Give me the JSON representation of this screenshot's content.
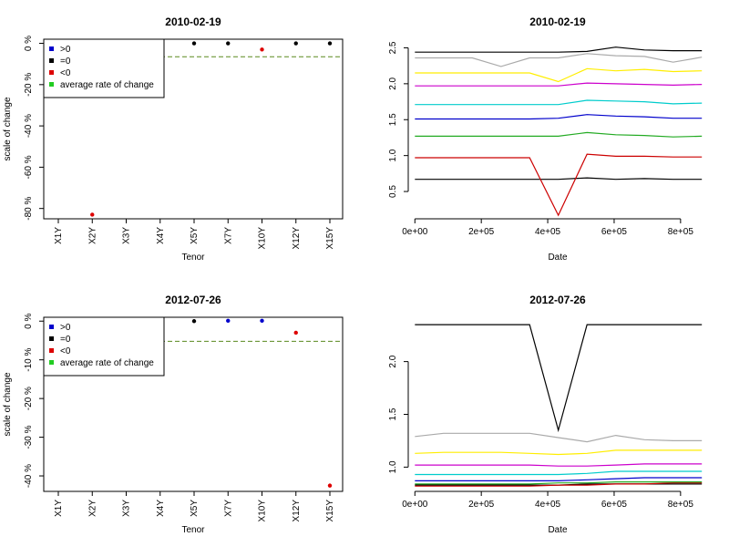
{
  "chart_data": [
    {
      "type": "scatter",
      "title": "2010-02-19",
      "xlabel": "Tenor",
      "ylabel": "scale of change",
      "categories": [
        "X1Y",
        "X2Y",
        "X3Y",
        "X4Y",
        "X5Y",
        "X7Y",
        "X10Y",
        "X12Y",
        "X15Y"
      ],
      "ylim": [
        -85,
        2
      ],
      "yticks": [
        0,
        -20,
        -40,
        -60,
        -80
      ],
      "ytick_labels": [
        "0 %",
        "-20 %",
        "-40 %",
        "-60 %",
        "-80 %"
      ],
      "legend": {
        "position": "top-left",
        "items": [
          {
            "label": ">0",
            "color": "#0000cc"
          },
          {
            "label": "=0",
            "color": "#000000"
          },
          {
            "label": "<0",
            "color": "#dd0000"
          },
          {
            "label": "average rate of change",
            "color": "#22cc22"
          }
        ]
      },
      "points": [
        {
          "category": "X2Y",
          "value": -83,
          "kind": "<0"
        },
        {
          "category": "X5Y",
          "value": 0,
          "kind": "=0"
        },
        {
          "category": "X7Y",
          "value": 0,
          "kind": "=0"
        },
        {
          "category": "X10Y",
          "value": -3,
          "kind": "<0"
        },
        {
          "category": "X12Y",
          "value": 0,
          "kind": "=0"
        },
        {
          "category": "X15Y",
          "value": 0,
          "kind": "=0"
        }
      ],
      "average_line": {
        "value": -6.5,
        "color": "#5a8a1e"
      }
    },
    {
      "type": "line",
      "title": "2010-02-19",
      "xlabel": "Date",
      "ylabel": "",
      "xlim": [
        -20000,
        880000
      ],
      "ylim": [
        0.12,
        2.62
      ],
      "xticks": [
        0,
        200000,
        400000,
        600000,
        800000
      ],
      "xtick_labels": [
        "0e+00",
        "2e+05",
        "4e+05",
        "6e+05",
        "8e+05"
      ],
      "yticks": [
        0.5,
        1.0,
        1.5,
        2.0,
        2.5
      ],
      "ytick_labels": [
        "0.5",
        "1.0",
        "1.5",
        "2.0",
        "2.5"
      ],
      "x": [
        0,
        86400,
        172800,
        259200,
        345600,
        432000,
        518400,
        604800,
        691200,
        777600,
        864000
      ],
      "series": [
        {
          "color": "#000000",
          "values": [
            0.67,
            0.67,
            0.67,
            0.67,
            0.67,
            0.67,
            0.69,
            0.67,
            0.68,
            0.67,
            0.67
          ]
        },
        {
          "color": "#cc0000",
          "values": [
            0.97,
            0.97,
            0.97,
            0.97,
            0.97,
            0.17,
            1.02,
            0.99,
            0.99,
            0.98,
            0.98
          ]
        },
        {
          "color": "#22aa22",
          "values": [
            1.27,
            1.27,
            1.27,
            1.27,
            1.27,
            1.27,
            1.32,
            1.29,
            1.28,
            1.26,
            1.27
          ]
        },
        {
          "color": "#0000cc",
          "values": [
            1.51,
            1.51,
            1.51,
            1.51,
            1.51,
            1.52,
            1.57,
            1.55,
            1.54,
            1.52,
            1.52
          ]
        },
        {
          "color": "#00cccc",
          "values": [
            1.71,
            1.71,
            1.71,
            1.71,
            1.71,
            1.71,
            1.77,
            1.76,
            1.75,
            1.72,
            1.73
          ]
        },
        {
          "color": "#cc00cc",
          "values": [
            1.97,
            1.97,
            1.97,
            1.97,
            1.97,
            1.97,
            2.01,
            2.0,
            1.99,
            1.98,
            1.99
          ]
        },
        {
          "color": "#ffee00",
          "values": [
            2.15,
            2.15,
            2.15,
            2.15,
            2.15,
            2.03,
            2.21,
            2.18,
            2.2,
            2.17,
            2.18
          ]
        },
        {
          "color": "#aaaaaa",
          "values": [
            2.36,
            2.36,
            2.36,
            2.24,
            2.36,
            2.36,
            2.42,
            2.39,
            2.38,
            2.3,
            2.37
          ]
        },
        {
          "color": "#000000",
          "values": [
            2.44,
            2.44,
            2.44,
            2.44,
            2.44,
            2.44,
            2.45,
            2.51,
            2.47,
            2.46,
            2.46
          ]
        }
      ]
    },
    {
      "type": "scatter",
      "title": "2012-07-26",
      "xlabel": "Tenor",
      "ylabel": "scale of change",
      "categories": [
        "X1Y",
        "X2Y",
        "X3Y",
        "X4Y",
        "X5Y",
        "X7Y",
        "X10Y",
        "X12Y",
        "X15Y"
      ],
      "ylim": [
        -44,
        1
      ],
      "yticks": [
        0,
        -10,
        -20,
        -30,
        -40
      ],
      "ytick_labels": [
        "0 %",
        "-10 %",
        "-20 %",
        "-30 %",
        "-40 %"
      ],
      "legend": {
        "position": "top-left",
        "items": [
          {
            "label": ">0",
            "color": "#0000cc"
          },
          {
            "label": "=0",
            "color": "#000000"
          },
          {
            "label": "<0",
            "color": "#dd0000"
          },
          {
            "label": "average rate of change",
            "color": "#22cc22"
          }
        ]
      },
      "points": [
        {
          "category": "X5Y",
          "value": 0,
          "kind": "=0"
        },
        {
          "category": "X7Y",
          "value": 0.1,
          "kind": ">0"
        },
        {
          "category": "X10Y",
          "value": 0.1,
          "kind": ">0"
        },
        {
          "category": "X12Y",
          "value": -3,
          "kind": "<0"
        },
        {
          "category": "X15Y",
          "value": -42.5,
          "kind": "<0"
        }
      ],
      "average_line": {
        "value": -5.2,
        "color": "#5a8a1e"
      }
    },
    {
      "type": "line",
      "title": "2012-07-26",
      "xlabel": "Date",
      "ylabel": "",
      "xlim": [
        -20000,
        880000
      ],
      "ylim": [
        0.77,
        2.42
      ],
      "xticks": [
        0,
        200000,
        400000,
        600000,
        800000
      ],
      "xtick_labels": [
        "0e+00",
        "2e+05",
        "4e+05",
        "6e+05",
        "8e+05"
      ],
      "yticks": [
        1.0,
        1.5,
        2.0
      ],
      "ytick_labels": [
        "1.0",
        "1.5",
        "2.0"
      ],
      "x": [
        0,
        86400,
        172800,
        259200,
        345600,
        432000,
        518400,
        604800,
        691200,
        777600,
        864000
      ],
      "series": [
        {
          "color": "#000000",
          "values": [
            0.83,
            0.83,
            0.83,
            0.83,
            0.83,
            0.83,
            0.84,
            0.84,
            0.84,
            0.84,
            0.84
          ]
        },
        {
          "color": "#cc0000",
          "values": [
            0.82,
            0.82,
            0.82,
            0.82,
            0.82,
            0.83,
            0.83,
            0.84,
            0.84,
            0.85,
            0.85
          ]
        },
        {
          "color": "#22aa22",
          "values": [
            0.84,
            0.84,
            0.84,
            0.84,
            0.84,
            0.85,
            0.85,
            0.86,
            0.86,
            0.86,
            0.86
          ]
        },
        {
          "color": "#0000cc",
          "values": [
            0.87,
            0.87,
            0.87,
            0.87,
            0.87,
            0.87,
            0.88,
            0.89,
            0.9,
            0.9,
            0.9
          ]
        },
        {
          "color": "#00cccc",
          "values": [
            0.93,
            0.93,
            0.93,
            0.93,
            0.93,
            0.93,
            0.94,
            0.96,
            0.96,
            0.96,
            0.96
          ]
        },
        {
          "color": "#cc00cc",
          "values": [
            1.02,
            1.02,
            1.02,
            1.02,
            1.02,
            1.01,
            1.01,
            1.02,
            1.03,
            1.03,
            1.03
          ]
        },
        {
          "color": "#ffee00",
          "values": [
            1.13,
            1.14,
            1.14,
            1.14,
            1.13,
            1.12,
            1.13,
            1.16,
            1.16,
            1.16,
            1.16
          ]
        },
        {
          "color": "#aaaaaa",
          "values": [
            1.29,
            1.32,
            1.32,
            1.32,
            1.32,
            1.28,
            1.24,
            1.3,
            1.26,
            1.25,
            1.25
          ]
        },
        {
          "color": "#000000",
          "values": [
            2.35,
            2.35,
            2.35,
            2.35,
            2.35,
            1.35,
            2.35,
            2.35,
            2.35,
            2.35,
            2.35
          ]
        }
      ]
    }
  ]
}
